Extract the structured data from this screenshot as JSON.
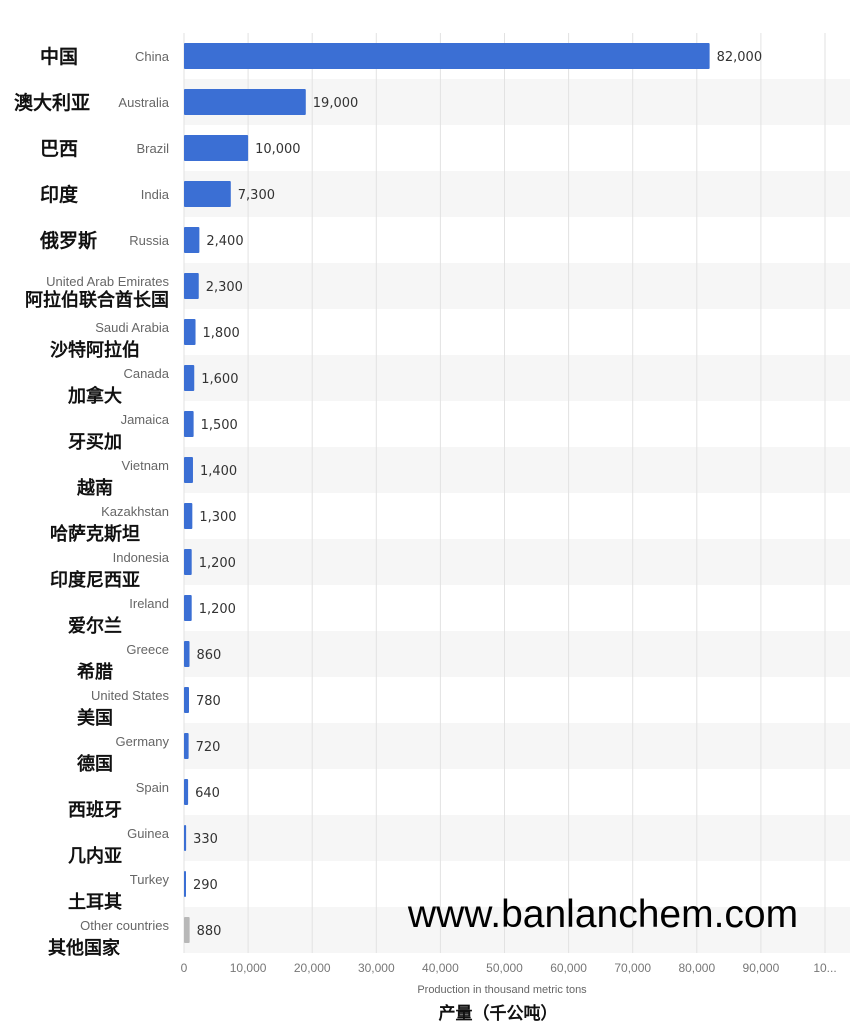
{
  "chart_data": {
    "type": "bar",
    "orientation": "horizontal",
    "categories": [
      "China",
      "Australia",
      "Brazil",
      "India",
      "Russia",
      "United Arab Emirates",
      "Saudi Arabia",
      "Canada",
      "Jamaica",
      "Vietnam",
      "Kazakhstan",
      "Indonesia",
      "Ireland",
      "Greece",
      "United States",
      "Germany",
      "Spain",
      "Guinea",
      "Turkey",
      "Other countries"
    ],
    "categories_zh": [
      "中国",
      "澳大利亚",
      "巴西",
      "印度",
      "俄罗斯",
      "阿拉伯联合酋长国",
      "沙特阿拉伯",
      "加拿大",
      "牙买加",
      "越南",
      "哈萨克斯坦",
      "印度尼西亚",
      "爱尔兰",
      "希腊",
      "美国",
      "德国",
      "西班牙",
      "几内亚",
      "土耳其",
      "其他国家"
    ],
    "values": [
      82000,
      19000,
      10000,
      7300,
      2400,
      2300,
      1800,
      1600,
      1500,
      1400,
      1300,
      1200,
      1200,
      860,
      780,
      720,
      640,
      330,
      290,
      880
    ],
    "value_labels": [
      "82,000",
      "19,000",
      "10,000",
      "7,300",
      "2,400",
      "2,300",
      "1,800",
      "1,600",
      "1,500",
      "1,400",
      "1,300",
      "1,200",
      "1,200",
      "860",
      "780",
      "720",
      "640",
      "330",
      "290",
      "880"
    ],
    "highlight_last": true,
    "xlim": [
      0,
      100000
    ],
    "xticks": [
      "0",
      "10,000",
      "20,000",
      "30,000",
      "40,000",
      "50,000",
      "60,000",
      "70,000",
      "80,000",
      "90,000",
      "10..."
    ],
    "xlabel": "Production in thousand metric tons",
    "xlabel_zh": "产量（千公吨）",
    "grid": true,
    "colors": {
      "bar": "#3b6fd4",
      "other_bar": "#b8b8b8",
      "band": "#f6f6f6",
      "grid": "#e2e2e2"
    }
  },
  "watermark": "www.banlanchem.com"
}
